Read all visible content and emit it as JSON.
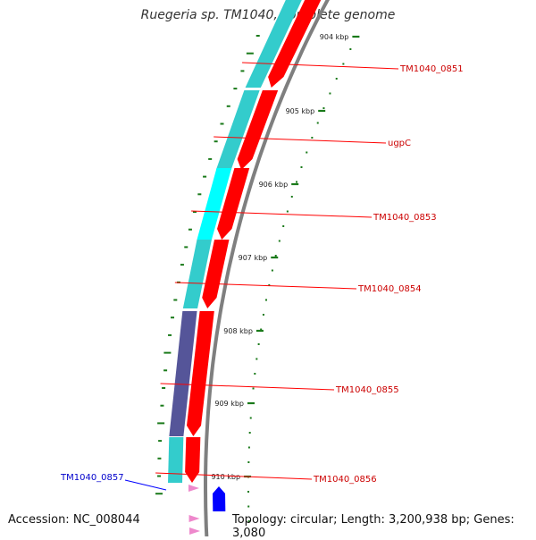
{
  "title": "Ruegeria sp. TM1040, complete genome",
  "footer": {
    "accession": "Accession: NC_008044",
    "topology": "Topology: circular; Length: 3,200,938 bp; Genes: 3,080"
  },
  "colors": {
    "backbone": "#7f7f7f",
    "scale_ticks": "#1a7a1a",
    "forward_gene": "#ff0000",
    "forward_label": "#cc0000",
    "reverse_gene": "#0000ff",
    "reverse_label": "#0000cc",
    "cyan_band": "#33cccc",
    "bright_cyan_band": "#00ffff",
    "purple_band": "#555599",
    "pink_marker": "#ee88cc"
  },
  "scale": {
    "unit": "kbp",
    "labels": [
      "904 kbp",
      "905 kbp",
      "906 kbp",
      "907 kbp",
      "908 kbp",
      "909 kbp",
      "910 kbp"
    ]
  },
  "forward_genes": [
    {
      "id": "TM1040_0851",
      "label": "TM1040_0851",
      "band": "cyan"
    },
    {
      "id": "ugpC",
      "label": "ugpC",
      "band": "cyan"
    },
    {
      "id": "TM1040_0853",
      "label": "TM1040_0853",
      "band": "bright_cyan"
    },
    {
      "id": "TM1040_0854",
      "label": "TM1040_0854",
      "band": "cyan"
    },
    {
      "id": "TM1040_0855",
      "label": "TM1040_0855",
      "band": "purple"
    },
    {
      "id": "TM1040_0856",
      "label": "TM1040_0856",
      "band": "cyan"
    }
  ],
  "reverse_genes": [
    {
      "id": "TM1040_0857",
      "label": "TM1040_0857"
    }
  ]
}
